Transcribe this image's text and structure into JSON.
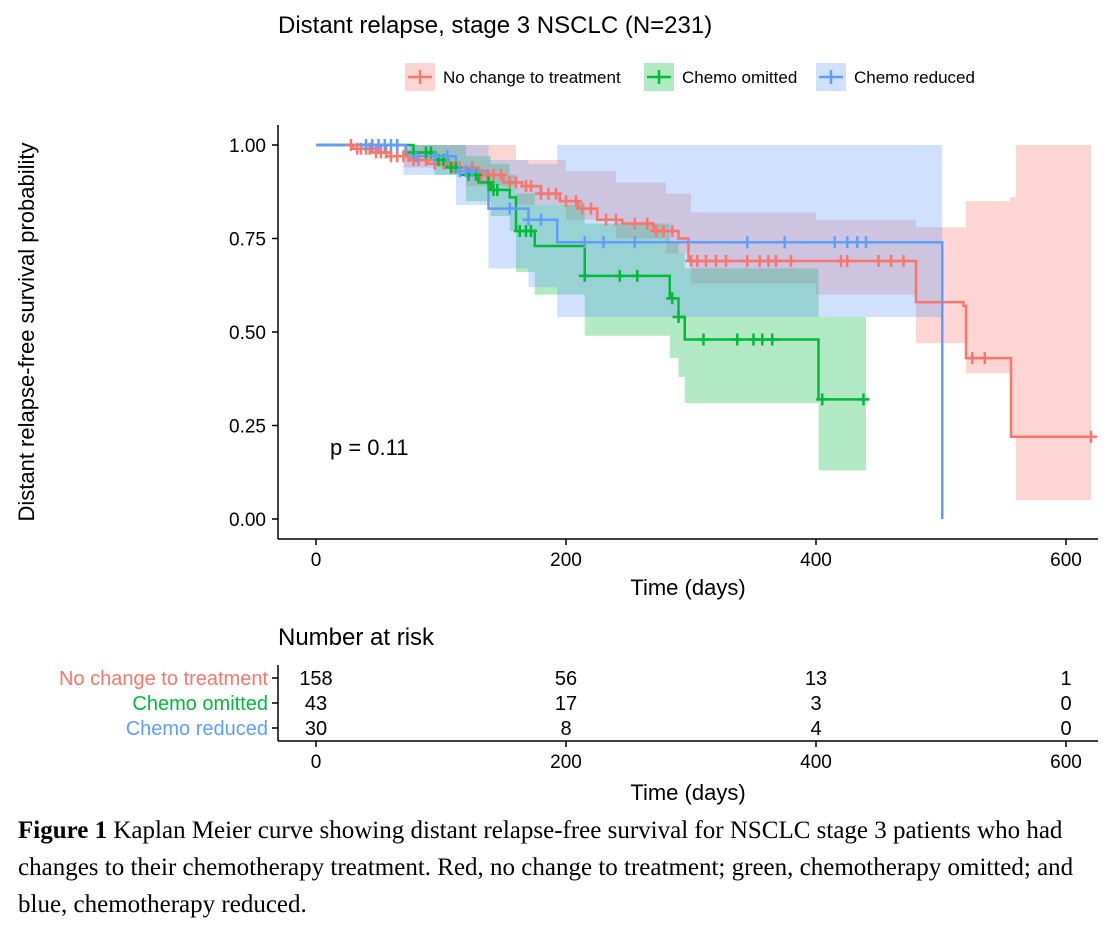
{
  "chart_data": {
    "type": "line",
    "subtype": "kaplan-meier",
    "title": "Distant relapse, stage 3 NSCLC (N=231)",
    "xlabel": "Time (days)",
    "ylabel": "Distant relapse-free survival probability",
    "xlim": [
      -40,
      630
    ],
    "ylim": [
      -0.05,
      1.05
    ],
    "x_ticks": [
      0,
      200,
      400,
      600
    ],
    "y_ticks": [
      0.0,
      0.25,
      0.5,
      0.75,
      1.0
    ],
    "y_tick_labels": [
      "0.00",
      "0.25",
      "0.50",
      "0.75",
      "1.00"
    ],
    "grid": false,
    "legend_position": "top",
    "annotation": "p = 0.11",
    "series": [
      {
        "name": "No change to treatment",
        "color": "#F8766D",
        "steps": [
          [
            0,
            1.0
          ],
          [
            30,
            0.99
          ],
          [
            45,
            0.98
          ],
          [
            60,
            0.97
          ],
          [
            75,
            0.96
          ],
          [
            90,
            0.95
          ],
          [
            110,
            0.94
          ],
          [
            130,
            0.92
          ],
          [
            150,
            0.9
          ],
          [
            165,
            0.89
          ],
          [
            180,
            0.87
          ],
          [
            195,
            0.85
          ],
          [
            210,
            0.83
          ],
          [
            225,
            0.8
          ],
          [
            245,
            0.79
          ],
          [
            270,
            0.77
          ],
          [
            290,
            0.75
          ],
          [
            298,
            0.69
          ],
          [
            480,
            0.58
          ],
          [
            518,
            0.57
          ],
          [
            520,
            0.43
          ],
          [
            555,
            0.43
          ],
          [
            556,
            0.22
          ],
          [
            620,
            0.22
          ]
        ],
        "ci_steps": [
          [
            0,
            1.0,
            1.0
          ],
          [
            70,
            1.0,
            0.94
          ],
          [
            120,
            1.0,
            0.89
          ],
          [
            160,
            0.96,
            0.84
          ],
          [
            200,
            0.93,
            0.8
          ],
          [
            240,
            0.9,
            0.75
          ],
          [
            280,
            0.87,
            0.71
          ],
          [
            300,
            0.82,
            0.63
          ],
          [
            400,
            0.8,
            0.6
          ],
          [
            480,
            0.78,
            0.47
          ],
          [
            520,
            0.85,
            0.39
          ],
          [
            555,
            0.86,
            0.22
          ],
          [
            560,
            1.0,
            0.05
          ],
          [
            620,
            1.0,
            0.05
          ]
        ],
        "censor_x": [
          28,
          33,
          36,
          40,
          43,
          48,
          52,
          56,
          60,
          65,
          70,
          74,
          78,
          82,
          88,
          95,
          102,
          110,
          115,
          125,
          132,
          137,
          142,
          148,
          155,
          160,
          168,
          172,
          180,
          186,
          192,
          200,
          208,
          213,
          220,
          232,
          240,
          255,
          265,
          272,
          278,
          285,
          300,
          305,
          312,
          320,
          328,
          345,
          355,
          362,
          368,
          380,
          420,
          425,
          450,
          460,
          470,
          525,
          535,
          620
        ]
      },
      {
        "name": "Chemo omitted",
        "color": "#00BA38",
        "steps": [
          [
            0,
            1.0
          ],
          [
            75,
            1.0
          ],
          [
            78,
            0.98
          ],
          [
            95,
            0.96
          ],
          [
            105,
            0.94
          ],
          [
            115,
            0.92
          ],
          [
            130,
            0.9
          ],
          [
            140,
            0.88
          ],
          [
            155,
            0.86
          ],
          [
            160,
            0.77
          ],
          [
            175,
            0.73
          ],
          [
            210,
            0.73
          ],
          [
            215,
            0.65
          ],
          [
            280,
            0.65
          ],
          [
            283,
            0.59
          ],
          [
            290,
            0.54
          ],
          [
            295,
            0.48
          ],
          [
            400,
            0.48
          ],
          [
            402,
            0.32
          ],
          [
            440,
            0.32
          ]
        ],
        "ci_steps": [
          [
            0,
            1.0,
            1.0
          ],
          [
            75,
            1.0,
            0.97
          ],
          [
            95,
            1.0,
            0.92
          ],
          [
            120,
            0.97,
            0.85
          ],
          [
            140,
            0.95,
            0.81
          ],
          [
            155,
            0.92,
            0.77
          ],
          [
            160,
            0.87,
            0.66
          ],
          [
            175,
            0.84,
            0.6
          ],
          [
            215,
            0.79,
            0.49
          ],
          [
            283,
            0.74,
            0.43
          ],
          [
            290,
            0.71,
            0.38
          ],
          [
            295,
            0.67,
            0.31
          ],
          [
            402,
            0.54,
            0.13
          ],
          [
            440,
            0.54,
            0.13
          ]
        ],
        "censor_x": [
          78,
          88,
          92,
          98,
          102,
          108,
          112,
          122,
          128,
          138,
          142,
          145,
          163,
          168,
          172,
          215,
          243,
          257,
          285,
          290,
          310,
          337,
          350,
          357,
          365,
          405,
          438
        ]
      },
      {
        "name": "Chemo reduced",
        "color": "#619CFF",
        "steps": [
          [
            0,
            1.0
          ],
          [
            70,
            1.0
          ],
          [
            72,
            0.97
          ],
          [
            110,
            0.97
          ],
          [
            112,
            0.93
          ],
          [
            135,
            0.93
          ],
          [
            138,
            0.83
          ],
          [
            155,
            0.83
          ],
          [
            170,
            0.8
          ],
          [
            190,
            0.8
          ],
          [
            193,
            0.74
          ],
          [
            500,
            0.74
          ],
          [
            501,
            0.0
          ]
        ],
        "ci_steps": [
          [
            0,
            1.0,
            1.0
          ],
          [
            70,
            1.0,
            0.92
          ],
          [
            112,
            1.0,
            0.84
          ],
          [
            138,
            0.96,
            0.67
          ],
          [
            170,
            0.95,
            0.62
          ],
          [
            193,
            1.0,
            0.54
          ],
          [
            500,
            1.0,
            0.54
          ],
          [
            501,
            1.0,
            0.0
          ]
        ],
        "censor_x": [
          40,
          45,
          50,
          55,
          60,
          65,
          80,
          95,
          105,
          115,
          120,
          125,
          155,
          170,
          180,
          215,
          230,
          255,
          345,
          375,
          415,
          425,
          433,
          440
        ]
      }
    ]
  },
  "risk_table": {
    "title": "Number at risk",
    "xlabel": "Time (days)",
    "x_ticks": [
      0,
      200,
      400,
      600
    ],
    "rows": [
      {
        "label": "No change to treatment",
        "color": "#F8766D",
        "counts": [
          "158",
          "56",
          "13",
          "1"
        ]
      },
      {
        "label": "Chemo omitted",
        "color": "#00BA38",
        "counts": [
          "43",
          "17",
          "3",
          "0"
        ]
      },
      {
        "label": "Chemo reduced",
        "color": "#619CFF",
        "counts": [
          "30",
          "8",
          "4",
          "0"
        ]
      }
    ]
  },
  "caption": {
    "label": "Figure 1",
    "text": " Kaplan Meier curve showing distant relapse-free survival for NSCLC stage 3 patients who had changes to their chemotherapy treatment. Red, no change to treatment; green, chemotherapy omitted; and blue, chemotherapy reduced."
  }
}
